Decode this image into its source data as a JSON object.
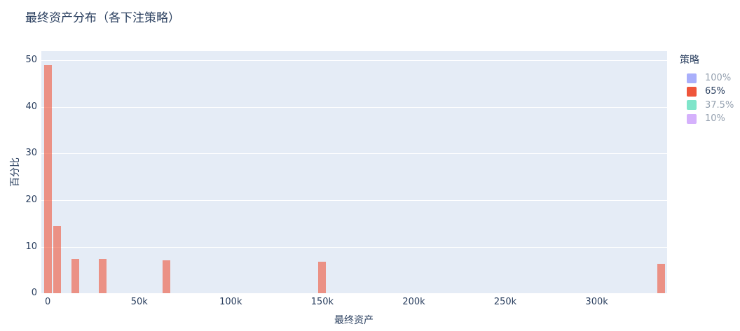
{
  "colors": {
    "text": "#2a3f5f",
    "dimmed_text": "#94a0af",
    "plot_background": "#e5ecf6",
    "gridline": "#ffffff",
    "page_background": "#ffffff",
    "active_bar": "rgba(239,85,59,0.6)"
  },
  "chart_data": {
    "type": "bar",
    "subtype": "histogram",
    "title": "最终资产分布（各下注策略）",
    "xlabel": "最终资产",
    "ylabel": "百分比",
    "xlim": [
      -3520,
      338440
    ],
    "ylim": [
      0,
      52
    ],
    "grid": "horizontal-only",
    "legend_position": "right",
    "legend_title": "策略",
    "bin_width": 5000,
    "series": [
      {
        "name": "100%",
        "swatch_color": "#a9affb",
        "visible": false,
        "bin_centers": [],
        "values": []
      },
      {
        "name": "65%",
        "swatch_color": "#ef553b",
        "bar_color": "rgba(239,85,59,0.6)",
        "visible": true,
        "bin_centers": [
          0,
          5000,
          15000,
          30000,
          65000,
          150000,
          335000
        ],
        "values": [
          49.0,
          14.5,
          7.4,
          7.3,
          7.1,
          6.7,
          6.3
        ]
      },
      {
        "name": "37.5%",
        "swatch_color": "#7fe5ca",
        "visible": false,
        "bin_centers": [],
        "values": []
      },
      {
        "name": "10%",
        "swatch_color": "#d5b1fc",
        "visible": false,
        "bin_centers": [],
        "values": []
      }
    ],
    "x_ticks": [
      {
        "v": 0,
        "label": "0"
      },
      {
        "v": 50000,
        "label": "50k"
      },
      {
        "v": 100000,
        "label": "100k"
      },
      {
        "v": 150000,
        "label": "150k"
      },
      {
        "v": 200000,
        "label": "200k"
      },
      {
        "v": 250000,
        "label": "250k"
      },
      {
        "v": 300000,
        "label": "300k"
      }
    ],
    "y_ticks": [
      {
        "v": 0,
        "label": "0"
      },
      {
        "v": 10,
        "label": "10"
      },
      {
        "v": 20,
        "label": "20"
      },
      {
        "v": 30,
        "label": "30"
      },
      {
        "v": 40,
        "label": "40"
      },
      {
        "v": 50,
        "label": "50"
      }
    ]
  }
}
